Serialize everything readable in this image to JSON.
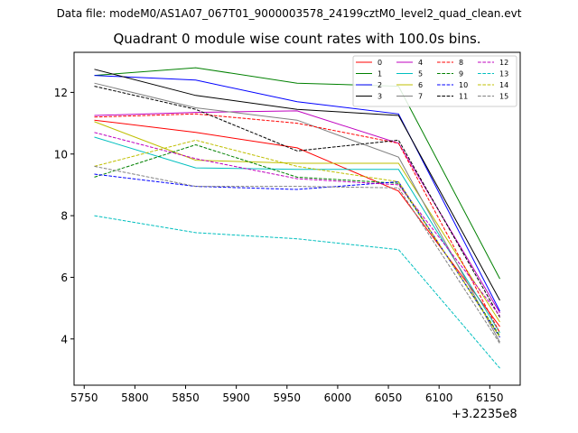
{
  "suptitle": "Data file: modeM0/AS1A07_067T01_9000003578_24199cztM0_level2_quad_clean.evt",
  "chart_data": {
    "type": "line",
    "title": "Quadrant 0 module wise count rates with 100.0s bins.",
    "xlabel": "",
    "ylabel": "",
    "x_offset_label": "+3.2235e8",
    "x": [
      5760,
      5860,
      5960,
      6060,
      6160
    ],
    "xlim": [
      5740,
      6180
    ],
    "ylim": [
      2.5,
      13.3
    ],
    "xticks": [
      5750,
      5800,
      5850,
      5900,
      5950,
      6000,
      6050,
      6100,
      6150
    ],
    "yticks": [
      4,
      6,
      8,
      10,
      12
    ],
    "legend_position": "top-right",
    "series": [
      {
        "name": "0",
        "color": "#ff0000",
        "dash": "solid",
        "values": [
          11.1,
          10.7,
          10.2,
          8.8,
          4.4
        ]
      },
      {
        "name": "1",
        "color": "#008000",
        "dash": "solid",
        "values": [
          12.55,
          12.8,
          12.3,
          12.2,
          5.95
        ]
      },
      {
        "name": "2",
        "color": "#0000ff",
        "dash": "solid",
        "values": [
          12.55,
          12.4,
          11.7,
          11.3,
          4.9
        ]
      },
      {
        "name": "3",
        "color": "#000000",
        "dash": "solid",
        "values": [
          12.75,
          11.9,
          11.45,
          11.25,
          5.25
        ]
      },
      {
        "name": "4",
        "color": "#bf00bf",
        "dash": "solid",
        "values": [
          11.25,
          11.35,
          11.4,
          10.35,
          4.85
        ]
      },
      {
        "name": "5",
        "color": "#00bfbf",
        "dash": "solid",
        "values": [
          10.55,
          9.55,
          9.5,
          9.5,
          4.2
        ]
      },
      {
        "name": "6",
        "color": "#bfbf00",
        "dash": "solid",
        "values": [
          11.05,
          9.8,
          9.7,
          9.7,
          4.55
        ]
      },
      {
        "name": "7",
        "color": "#808080",
        "dash": "solid",
        "values": [
          12.3,
          11.5,
          11.1,
          9.9,
          3.9
        ]
      },
      {
        "name": "8",
        "color": "#ff0000",
        "dash": "dashed",
        "values": [
          11.2,
          11.3,
          11.0,
          10.35,
          4.2
        ]
      },
      {
        "name": "9",
        "color": "#008000",
        "dash": "dashed",
        "values": [
          9.25,
          10.3,
          9.25,
          9.05,
          4.1
        ]
      },
      {
        "name": "10",
        "color": "#0000ff",
        "dash": "dashed",
        "values": [
          9.35,
          8.95,
          8.85,
          9.1,
          4.05
        ]
      },
      {
        "name": "11",
        "color": "#000000",
        "dash": "dashed",
        "values": [
          12.2,
          11.45,
          10.1,
          10.45,
          4.7
        ]
      },
      {
        "name": "12",
        "color": "#bf00bf",
        "dash": "dashed",
        "values": [
          10.7,
          9.85,
          9.2,
          9.0,
          4.75
        ]
      },
      {
        "name": "13",
        "color": "#00bfbf",
        "dash": "dashed",
        "values": [
          8.0,
          7.45,
          7.25,
          6.9,
          3.05
        ]
      },
      {
        "name": "14",
        "color": "#bfbf00",
        "dash": "dashed",
        "values": [
          9.6,
          10.45,
          9.6,
          9.1,
          4.05
        ]
      },
      {
        "name": "15",
        "color": "#808080",
        "dash": "dashed",
        "values": [
          9.6,
          8.95,
          8.95,
          8.9,
          3.85
        ]
      }
    ]
  }
}
